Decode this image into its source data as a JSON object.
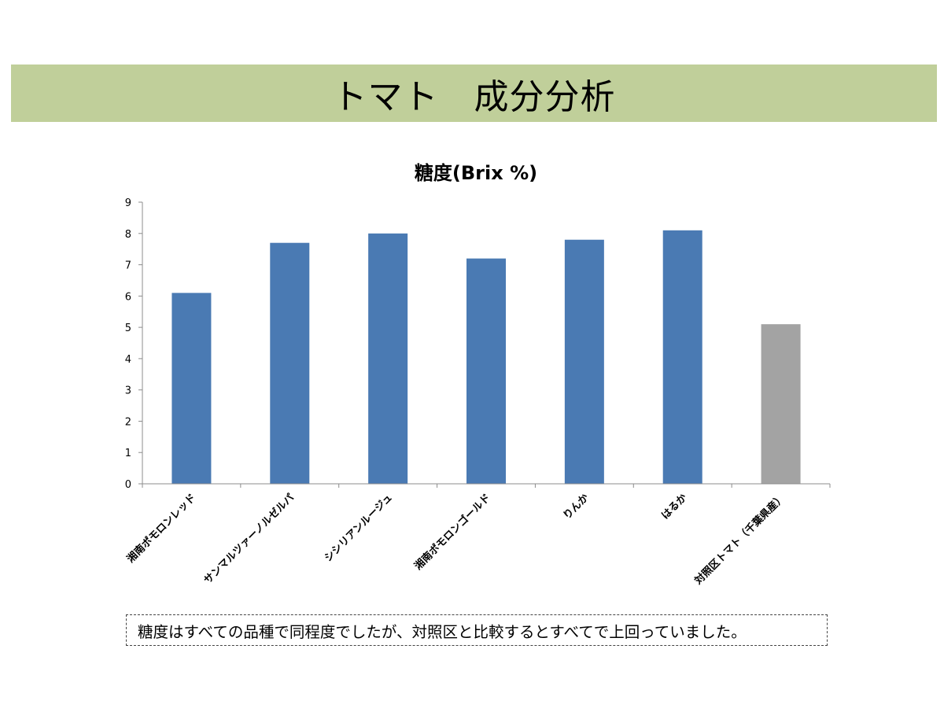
{
  "slide": {
    "title": "トマト　成分分析",
    "note": "糖度はすべての品種で同程度でしたが、対照区と比較するとすべてで上回っていました。"
  },
  "colors": {
    "title_band": "#c0cf9a",
    "bar_primary": "#4a7ab3",
    "bar_control": "#a3a3a3",
    "axis": "#8c8c8c"
  },
  "chart_data": {
    "type": "bar",
    "title": "糖度(Brix %)",
    "xlabel": "",
    "ylabel": "",
    "ylim": [
      0,
      9
    ],
    "yticks": [
      "0",
      "1",
      "2",
      "3",
      "4",
      "5",
      "6",
      "7",
      "8",
      "9"
    ],
    "grid": false,
    "legend": "none",
    "categories": [
      "湘南ポモロンレッド",
      "サンマルツァーノルゼルパ",
      "シシリアンルージュ",
      "湘南ポモロンゴールド",
      "りんか",
      "はるか",
      "対照区トマト（千葉県産）"
    ],
    "values": [
      6.1,
      7.7,
      8.0,
      7.2,
      7.8,
      8.1,
      5.1
    ],
    "bar_colors": [
      "#4a7ab3",
      "#4a7ab3",
      "#4a7ab3",
      "#4a7ab3",
      "#4a7ab3",
      "#4a7ab3",
      "#a3a3a3"
    ]
  }
}
